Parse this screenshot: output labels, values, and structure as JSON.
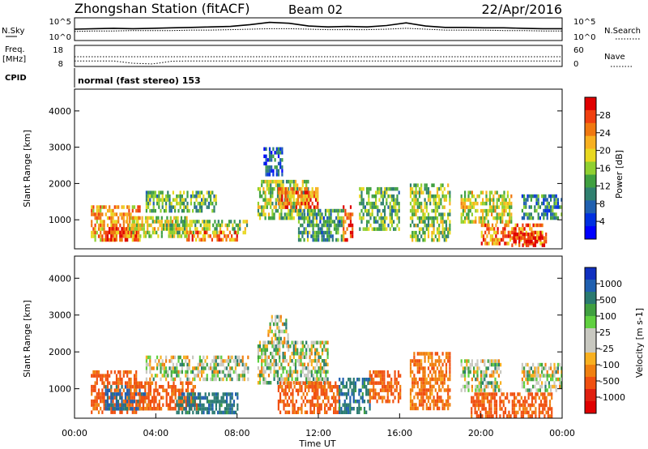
{
  "header": {
    "station": "Zhongshan Station (fitACF)",
    "beam": "Beam 02",
    "date": "22/Apr/2016"
  },
  "chart_data": [
    {
      "type": "line",
      "panel": "noise",
      "left_label": "N.Sky",
      "right_label": "N.Search",
      "left_ticks": [
        "10^5",
        "10^0"
      ],
      "right_ticks": [
        "10^5",
        "10^0"
      ],
      "series": [
        {
          "values": [
            2.5,
            2.6,
            2.7,
            2.6,
            2.7,
            2.8,
            2.9,
            3.0,
            3.1,
            3.5,
            4.0,
            3.8,
            3.2,
            3.0,
            3.1,
            3.0,
            3.3,
            3.9,
            3.2,
            2.9,
            2.9,
            2.8,
            2.8,
            2.7,
            2.6,
            2.6
          ]
        },
        {
          "values": [
            2.0,
            2.1,
            2.1,
            2.2,
            2.2,
            2.2,
            2.3,
            2.3,
            2.4,
            2.5,
            2.6,
            2.6,
            2.5,
            2.4,
            2.4,
            2.4,
            2.5,
            2.7,
            2.5,
            2.3,
            2.3,
            2.3,
            2.2,
            2.2,
            2.1,
            2.1
          ]
        }
      ]
    },
    {
      "type": "line",
      "panel": "frequency",
      "left_label": "Freq.",
      "left_unit": "[MHz]",
      "left_ticks": [
        "18",
        "8"
      ],
      "right_label": "Nave",
      "right_ticks": [
        "60",
        "0"
      ],
      "series": [
        {
          "values": [
            12.6,
            12.6,
            12.6,
            12.6,
            12.6,
            12.6,
            12.6,
            12.6,
            12.6,
            12.6,
            12.6,
            12.6,
            12.6,
            12.6,
            12.6,
            12.6,
            12.6,
            12.6,
            12.6,
            12.6,
            12.6,
            12.6,
            12.6,
            12.6,
            12.6,
            12.6
          ]
        },
        {
          "values": [
            10.6,
            10.6,
            10.6,
            9.5,
            9.2,
            10.5,
            10.6,
            10.6,
            10.6,
            10.6,
            10.6,
            10.6,
            10.6,
            10.6,
            10.6,
            10.6,
            10.6,
            10.6,
            10.6,
            10.6,
            10.6,
            10.6,
            10.6,
            10.6,
            10.6,
            10.6
          ]
        }
      ]
    },
    {
      "type": "table",
      "panel": "cpid",
      "label": "CPID",
      "text": "normal (fast stereo) 153"
    },
    {
      "type": "heatmap",
      "panel": "power",
      "ylabel": "Slant Range [km]",
      "yticks": [
        "4000",
        "3000",
        "2000",
        "1000"
      ],
      "ylim": [
        200,
        4600
      ],
      "xlim": [
        0,
        24
      ],
      "colorbar_label": "Power [dB]",
      "colorbar_ticks": [
        "28",
        "24",
        "20",
        "16",
        "12",
        "8",
        "4"
      ],
      "colorbar_colors": [
        "#e00000",
        "#f04010",
        "#f07810",
        "#f8b020",
        "#e8d820",
        "#90d030",
        "#40a040",
        "#308070",
        "#2060b0",
        "#0030e0",
        "#0000ff"
      ],
      "echo_regions": [
        {
          "t": [
            0.8,
            3.2
          ],
          "r": [
            400,
            1400
          ],
          "level": 20
        },
        {
          "t": [
            1.5,
            3.0
          ],
          "r": [
            450,
            800
          ],
          "level": 28
        },
        {
          "t": [
            2.5,
            5.5
          ],
          "r": [
            500,
            1100
          ],
          "level": 16
        },
        {
          "t": [
            3.5,
            7.0
          ],
          "r": [
            1200,
            1800
          ],
          "level": 12
        },
        {
          "t": [
            4.5,
            8.5
          ],
          "r": [
            600,
            1000
          ],
          "level": 14
        },
        {
          "t": [
            5.5,
            8.0
          ],
          "r": [
            400,
            700
          ],
          "level": 22
        },
        {
          "t": [
            9.0,
            11.5
          ],
          "r": [
            1000,
            2100
          ],
          "level": 14
        },
        {
          "t": [
            9.3,
            10.2
          ],
          "r": [
            2200,
            3000
          ],
          "level": 6
        },
        {
          "t": [
            10.0,
            12.0
          ],
          "r": [
            1300,
            1900
          ],
          "level": 22
        },
        {
          "t": [
            11.0,
            13.2
          ],
          "r": [
            400,
            1300
          ],
          "level": 10
        },
        {
          "t": [
            13.2,
            13.7
          ],
          "r": [
            400,
            1400
          ],
          "level": 26
        },
        {
          "t": [
            14.0,
            16.0
          ],
          "r": [
            700,
            1900
          ],
          "level": 12
        },
        {
          "t": [
            16.5,
            18.5
          ],
          "r": [
            400,
            2000
          ],
          "level": 14
        },
        {
          "t": [
            19.0,
            21.5
          ],
          "r": [
            900,
            1800
          ],
          "level": 16
        },
        {
          "t": [
            20.0,
            23.0
          ],
          "r": [
            300,
            900
          ],
          "level": 22
        },
        {
          "t": [
            21.5,
            23.2
          ],
          "r": [
            300,
            650
          ],
          "level": 28
        },
        {
          "t": [
            22.0,
            24.0
          ],
          "r": [
            1000,
            1700
          ],
          "level": 8
        }
      ]
    },
    {
      "type": "heatmap",
      "panel": "velocity",
      "ylabel": "Slant Range [km]",
      "yticks": [
        "4000",
        "3000",
        "2000",
        "1000"
      ],
      "ylim": [
        200,
        4600
      ],
      "xlim": [
        0,
        24
      ],
      "xticks": [
        "00:00",
        "04:00",
        "08:00",
        "12:00",
        "16:00",
        "20:00",
        "00:00"
      ],
      "xlabel": "Time UT",
      "colorbar_label": "Velocity [m s-1]",
      "colorbar_ticks": [
        "1000",
        "500",
        "100",
        "25",
        "-25",
        "-100",
        "-500",
        "-1000"
      ],
      "colorbar_colors": [
        "#1030c0",
        "#2060b0",
        "#2a7a70",
        "#40a040",
        "#60d040",
        "#c8c8c0",
        "#c8c8c0",
        "#f8b020",
        "#f08010",
        "#f05010",
        "#e02010",
        "#e00000"
      ],
      "echo_regions": [
        {
          "t": [
            0.8,
            3.0
          ],
          "r": [
            400,
            1500
          ],
          "level": -300
        },
        {
          "t": [
            1.5,
            3.5
          ],
          "r": [
            500,
            1100
          ],
          "level": 300
        },
        {
          "t": [
            3.0,
            6.0
          ],
          "r": [
            500,
            1200
          ],
          "level": -300
        },
        {
          "t": [
            3.5,
            8.5
          ],
          "r": [
            1300,
            1900
          ],
          "level": 0
        },
        {
          "t": [
            5.0,
            8.0
          ],
          "r": [
            400,
            900
          ],
          "level": 200
        },
        {
          "t": [
            9.0,
            12.5
          ],
          "r": [
            1200,
            2300
          ],
          "level": 0
        },
        {
          "t": [
            9.5,
            10.5
          ],
          "r": [
            2300,
            3000
          ],
          "level": 0
        },
        {
          "t": [
            10.0,
            13.0
          ],
          "r": [
            400,
            1200
          ],
          "level": -300
        },
        {
          "t": [
            13.0,
            14.5
          ],
          "r": [
            400,
            1300
          ],
          "level": 200
        },
        {
          "t": [
            14.5,
            16.0
          ],
          "r": [
            700,
            1500
          ],
          "level": -300
        },
        {
          "t": [
            16.5,
            18.5
          ],
          "r": [
            500,
            2000
          ],
          "level": -200
        },
        {
          "t": [
            19.0,
            21.0
          ],
          "r": [
            1000,
            1800
          ],
          "level": 0
        },
        {
          "t": [
            19.5,
            23.5
          ],
          "r": [
            300,
            900
          ],
          "level": -300
        },
        {
          "t": [
            22.0,
            24.0
          ],
          "r": [
            1000,
            1700
          ],
          "level": 0
        }
      ]
    }
  ]
}
